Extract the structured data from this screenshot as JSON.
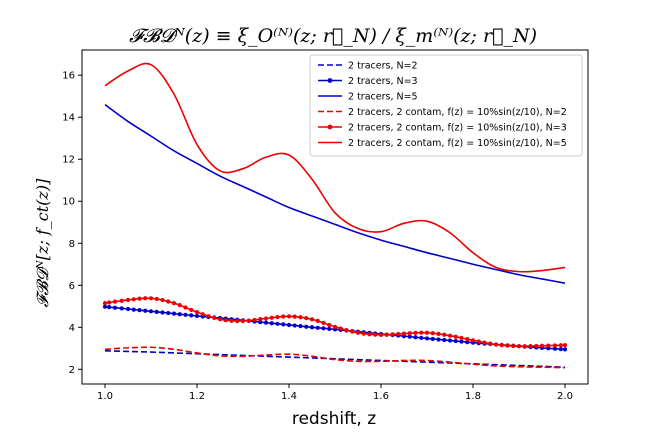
{
  "chart_data": {
    "type": "line",
    "title": "𝓕𝓑𝓓ᴺ(z) ≡ ξ_O⁽ᴺ⁾(z; r⃗_N) / ξ_m⁽ᴺ⁾(z; r⃗_N)",
    "xlabel": "redshift, z",
    "ylabel": "𝓕𝓑𝓓ᴺ[z; f_ct(z)]",
    "xlim": [
      0.95,
      2.05
    ],
    "ylim": [
      1.3,
      17.2
    ],
    "x_ticks": [
      1.0,
      1.2,
      1.4,
      1.6,
      1.8,
      2.0
    ],
    "x_tick_labels": [
      "1.0",
      "1.2",
      "1.4",
      "1.6",
      "1.8",
      "2.0"
    ],
    "y_ticks": [
      2,
      4,
      6,
      8,
      10,
      12,
      14,
      16
    ],
    "y_tick_labels": [
      "2",
      "4",
      "6",
      "8",
      "10",
      "12",
      "14",
      "16"
    ],
    "grid": false,
    "legend_position": "top-right",
    "x": [
      1.0,
      1.05,
      1.1,
      1.15,
      1.2,
      1.25,
      1.3,
      1.35,
      1.4,
      1.45,
      1.5,
      1.55,
      1.6,
      1.65,
      1.7,
      1.75,
      1.8,
      1.85,
      1.9,
      1.95,
      2.0
    ],
    "series": [
      {
        "name": "2 tracers, N=2",
        "color": "#0000cc",
        "style": "dashed",
        "marker": false,
        "values": [
          2.88,
          2.85,
          2.82,
          2.78,
          2.74,
          2.7,
          2.66,
          2.62,
          2.58,
          2.54,
          2.5,
          2.46,
          2.42,
          2.38,
          2.34,
          2.3,
          2.26,
          2.22,
          2.18,
          2.14,
          2.1
        ]
      },
      {
        "name": "2 tracers, N=3",
        "color": "#0000cc",
        "style": "solid",
        "marker": true,
        "values": [
          4.98,
          4.87,
          4.76,
          4.65,
          4.54,
          4.44,
          4.33,
          4.22,
          4.11,
          4.0,
          3.9,
          3.79,
          3.68,
          3.58,
          3.47,
          3.37,
          3.27,
          3.18,
          3.1,
          3.02,
          2.95
        ]
      },
      {
        "name": "2 tracers, N=5",
        "color": "#0000cc",
        "style": "solid",
        "marker": false,
        "values": [
          14.6,
          13.8,
          13.1,
          12.4,
          11.8,
          11.2,
          10.7,
          10.2,
          9.7,
          9.3,
          8.9,
          8.5,
          8.15,
          7.85,
          7.55,
          7.28,
          7.0,
          6.75,
          6.5,
          6.3,
          6.1
        ]
      },
      {
        "name": "2 tracers, 2 contam, f(z) = 10%sin(z/10), N=2",
        "color": "#ee0000",
        "style": "dashed",
        "marker": false,
        "values": [
          2.95,
          3.02,
          3.05,
          2.95,
          2.78,
          2.64,
          2.62,
          2.68,
          2.72,
          2.62,
          2.46,
          2.38,
          2.38,
          2.42,
          2.42,
          2.34,
          2.24,
          2.16,
          2.12,
          2.1,
          2.08
        ]
      },
      {
        "name": "2 tracers, 2 contam, f(z) = 10%sin(z/10), N=3",
        "color": "#ee0000",
        "style": "solid",
        "marker": true,
        "values": [
          5.15,
          5.3,
          5.38,
          5.15,
          4.72,
          4.38,
          4.3,
          4.42,
          4.52,
          4.38,
          4.02,
          3.74,
          3.64,
          3.7,
          3.74,
          3.6,
          3.38,
          3.18,
          3.1,
          3.12,
          3.15
        ]
      },
      {
        "name": "2 tracers, 2 contam, f(z) = 10%sin(z/10), N=5",
        "color": "#ee0000",
        "style": "solid",
        "marker": false,
        "values": [
          15.5,
          16.2,
          16.5,
          15.1,
          12.7,
          11.45,
          11.55,
          12.1,
          12.2,
          11.05,
          9.45,
          8.7,
          8.55,
          8.95,
          9.05,
          8.5,
          7.55,
          6.85,
          6.65,
          6.7,
          6.85
        ]
      }
    ]
  }
}
